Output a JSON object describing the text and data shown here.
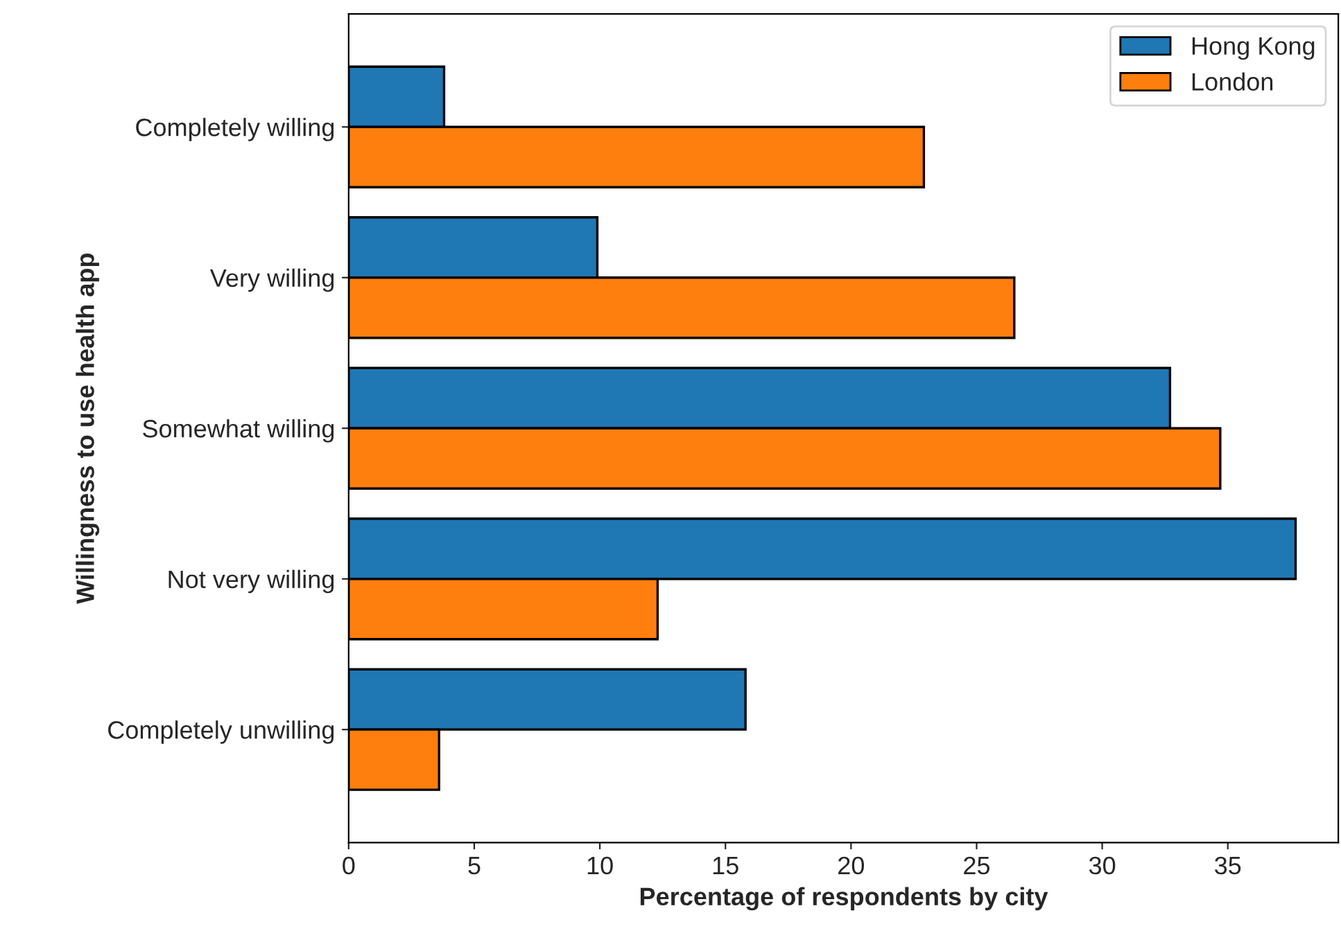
{
  "chart_data": {
    "type": "bar",
    "orientation": "horizontal",
    "xlabel": "Percentage of respondents by city",
    "ylabel": "Willingness to use health app",
    "categories": [
      "Completely willing",
      "Very willing",
      "Somewhat willing",
      "Not very willing",
      "Completely unwilling"
    ],
    "series": [
      {
        "name": "Hong Kong",
        "color": "#1f77b4",
        "values": [
          3.8,
          9.9,
          32.7,
          37.7,
          15.8
        ]
      },
      {
        "name": "London",
        "color": "#ff7f0e",
        "values": [
          22.9,
          26.5,
          34.7,
          12.3,
          3.6
        ]
      }
    ],
    "xlim": [
      0,
      39.4
    ],
    "xticks": [
      0,
      5,
      10,
      15,
      20,
      25,
      30,
      35
    ],
    "grid": false,
    "legend": "top right"
  }
}
